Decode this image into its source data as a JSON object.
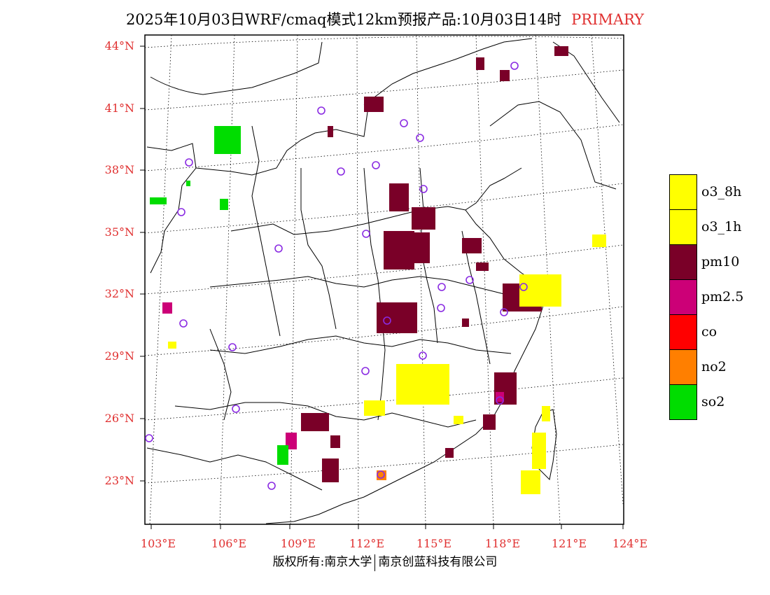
{
  "title": {
    "main": "2025年10月03日WRF/cmaq模式12km预报产品:10月03日14时",
    "tag": "PRIMARY"
  },
  "axes": {
    "lat_labels": [
      "44°N",
      "41°N",
      "38°N",
      "35°N",
      "32°N",
      "29°N",
      "26°N",
      "23°N"
    ],
    "lon_labels": [
      "103°E",
      "106°E",
      "109°E",
      "112°E",
      "115°E",
      "118°E",
      "121°E",
      "124°E"
    ]
  },
  "legend": [
    {
      "label": "o3_8h",
      "color": "#ffff00"
    },
    {
      "label": "o3_1h",
      "color": "#ffff00"
    },
    {
      "label": "pm10",
      "color": "#7a0028"
    },
    {
      "label": "pm2.5",
      "color": "#cc0077"
    },
    {
      "label": "co",
      "color": "#ff0000"
    },
    {
      "label": "no2",
      "color": "#ff7f00"
    },
    {
      "label": "so2",
      "color": "#00dd00"
    }
  ],
  "footer": {
    "left": "版权所有:南京大学",
    "right": "南京创蓝科技有限公司"
  },
  "colors": {
    "label_red": "#e03030",
    "station_circle": "#8a2be2",
    "pm10": "#7a0028",
    "pm25": "#cc0077",
    "o3": "#ffff00",
    "so2": "#00dd00",
    "no2": "#ff7f00"
  }
}
